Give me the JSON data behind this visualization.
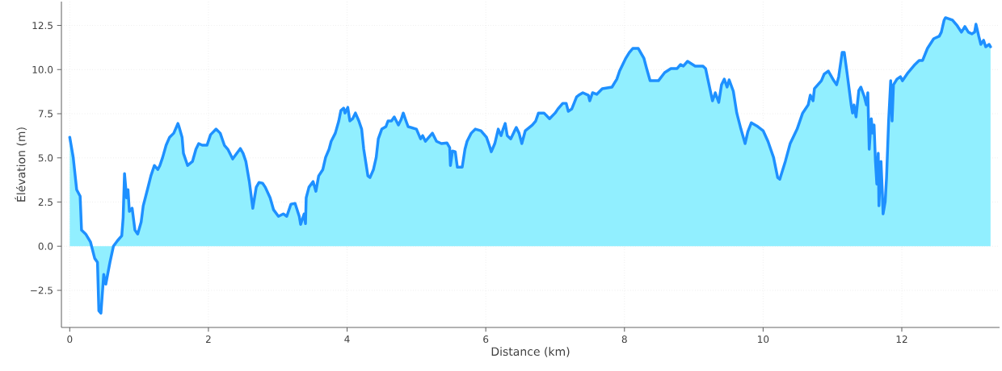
{
  "chart_data": {
    "type": "area",
    "xlabel": "Distance (km)",
    "ylabel": "Élévation (m)",
    "x": [
      0,
      0.05,
      0.1,
      0.15,
      0.17,
      0.23,
      0.3,
      0.36,
      0.4,
      0.42,
      0.45,
      0.49,
      0.52,
      0.58,
      0.63,
      0.69,
      0.75,
      0.77,
      0.79,
      0.82,
      0.84,
      0.86,
      0.9,
      0.94,
      0.98,
      1.03,
      1.06,
      1.12,
      1.17,
      1.22,
      1.27,
      1.3,
      1.34,
      1.39,
      1.44,
      1.5,
      1.56,
      1.58,
      1.62,
      1.64,
      1.7,
      1.77,
      1.82,
      1.86,
      1.91,
      1.98,
      2.03,
      2.11,
      2.17,
      2.23,
      2.28,
      2.35,
      2.41,
      2.46,
      2.5,
      2.54,
      2.59,
      2.64,
      2.69,
      2.73,
      2.78,
      2.82,
      2.89,
      2.94,
      3.01,
      3.08,
      3.13,
      3.19,
      3.25,
      3.31,
      3.33,
      3.38,
      3.4,
      3.41,
      3.45,
      3.51,
      3.55,
      3.59,
      3.65,
      3.69,
      3.74,
      3.77,
      3.83,
      3.88,
      3.91,
      3.95,
      3.97,
      4.01,
      4.04,
      4.08,
      4.12,
      4.17,
      4.21,
      4.24,
      4.3,
      4.33,
      4.38,
      4.42,
      4.45,
      4.5,
      4.56,
      4.59,
      4.64,
      4.68,
      4.74,
      4.78,
      4.81,
      4.85,
      4.88,
      5.0,
      5.06,
      5.09,
      5.13,
      5.23,
      5.29,
      5.36,
      5.44,
      5.48,
      5.49,
      5.52,
      5.56,
      5.59,
      5.66,
      5.7,
      5.73,
      5.79,
      5.85,
      5.93,
      6.01,
      6.05,
      6.08,
      6.13,
      6.18,
      6.22,
      6.25,
      6.28,
      6.31,
      6.36,
      6.41,
      6.44,
      6.48,
      6.52,
      6.57,
      6.67,
      6.72,
      6.76,
      6.84,
      6.92,
      7.0,
      7.04,
      7.11,
      7.16,
      7.19,
      7.24,
      7.31,
      7.34,
      7.4,
      7.48,
      7.5,
      7.54,
      7.6,
      7.68,
      7.82,
      7.89,
      7.93,
      8.02,
      8.07,
      8.12,
      8.2,
      8.28,
      8.32,
      8.37,
      8.49,
      8.58,
      8.67,
      8.76,
      8.81,
      8.85,
      8.91,
      9.02,
      9.13,
      9.17,
      9.2,
      9.27,
      9.31,
      9.36,
      9.4,
      9.44,
      9.48,
      9.51,
      9.57,
      9.62,
      9.68,
      9.74,
      9.78,
      9.83,
      9.91,
      10.0,
      10.07,
      10.15,
      10.21,
      10.24,
      10.32,
      10.39,
      10.49,
      10.57,
      10.65,
      10.68,
      10.72,
      10.74,
      10.84,
      10.88,
      10.94,
      11.02,
      11.06,
      11.09,
      11.14,
      11.17,
      11.21,
      11.27,
      11.29,
      11.31,
      11.34,
      11.38,
      11.41,
      11.46,
      11.49,
      11.51,
      11.53,
      11.56,
      11.58,
      11.6,
      11.62,
      11.64,
      11.66,
      11.67,
      11.7,
      11.72,
      11.73,
      11.76,
      11.78,
      11.81,
      11.84,
      11.86,
      11.88,
      11.93,
      11.98,
      12.01,
      12.09,
      12.19,
      12.25,
      12.3,
      12.37,
      12.46,
      12.54,
      12.57,
      12.61,
      12.63,
      12.73,
      12.8,
      12.86,
      12.91,
      12.96,
      13.01,
      13.05,
      13.07,
      13.11,
      13.14,
      13.18,
      13.21,
      13.26,
      13.28
    ],
    "series": [
      {
        "color": "#1e90ff",
        "values": [
          6.17,
          5.03,
          3.2,
          2.83,
          0.91,
          0.69,
          0.23,
          -0.69,
          -0.91,
          -3.66,
          -3.79,
          -1.6,
          -2.15,
          -0.91,
          0,
          0.32,
          0.59,
          1.6,
          4.11,
          2.74,
          3.2,
          1.97,
          2.15,
          0.91,
          0.69,
          1.37,
          2.29,
          3.2,
          3.98,
          4.57,
          4.34,
          4.57,
          5.03,
          5.72,
          6.17,
          6.4,
          6.95,
          6.72,
          6.17,
          5.26,
          4.57,
          4.8,
          5.49,
          5.81,
          5.72,
          5.72,
          6.31,
          6.63,
          6.4,
          5.72,
          5.49,
          4.94,
          5.26,
          5.53,
          5.26,
          4.8,
          3.66,
          2.15,
          3.34,
          3.61,
          3.57,
          3.34,
          2.74,
          2.06,
          1.69,
          1.83,
          1.69,
          2.38,
          2.42,
          1.69,
          1.23,
          1.83,
          1.28,
          2.74,
          3.34,
          3.66,
          3.11,
          3.98,
          4.34,
          5.03,
          5.49,
          5.94,
          6.4,
          7.09,
          7.68,
          7.82,
          7.54,
          7.86,
          7.09,
          7.22,
          7.54,
          7.09,
          6.63,
          5.49,
          3.98,
          3.89,
          4.34,
          5.03,
          6.08,
          6.63,
          6.77,
          7.09,
          7.09,
          7.32,
          6.86,
          7.18,
          7.54,
          7.09,
          6.77,
          6.63,
          6.08,
          6.26,
          5.94,
          6.4,
          5.94,
          5.81,
          5.85,
          5.58,
          4.57,
          5.39,
          5.35,
          4.48,
          4.48,
          5.49,
          5.94,
          6.4,
          6.63,
          6.54,
          6.17,
          5.72,
          5.35,
          5.81,
          6.63,
          6.26,
          6.63,
          6.95,
          6.26,
          6.08,
          6.49,
          6.72,
          6.4,
          5.81,
          6.54,
          6.86,
          7.09,
          7.54,
          7.54,
          7.22,
          7.54,
          7.77,
          8.09,
          8.09,
          7.64,
          7.77,
          8.46,
          8.55,
          8.69,
          8.55,
          8.23,
          8.69,
          8.6,
          8.92,
          9.01,
          9.46,
          9.92,
          10.65,
          10.97,
          11.2,
          11.2,
          10.65,
          10.06,
          9.37,
          9.37,
          9.83,
          10.06,
          10.06,
          10.29,
          10.2,
          10.47,
          10.2,
          10.2,
          10.06,
          9.51,
          8.23,
          8.69,
          8.14,
          9.14,
          9.46,
          9.01,
          9.42,
          8.78,
          7.54,
          6.63,
          5.81,
          6.49,
          6.99,
          6.81,
          6.54,
          5.94,
          5.03,
          3.89,
          3.79,
          4.8,
          5.81,
          6.63,
          7.54,
          8.0,
          8.55,
          8.23,
          8.92,
          9.37,
          9.74,
          9.92,
          9.37,
          9.14,
          9.6,
          10.97,
          10.97,
          9.83,
          8.0,
          7.54,
          8.0,
          7.32,
          8.82,
          9.01,
          8.46,
          8.0,
          8.69,
          5.49,
          7.22,
          6.4,
          6.86,
          4.8,
          3.52,
          5.26,
          2.29,
          4.8,
          2.97,
          1.83,
          2.51,
          3.89,
          7.09,
          9.37,
          7.09,
          9.14,
          9.46,
          9.6,
          9.37,
          9.83,
          10.29,
          10.52,
          10.52,
          11.2,
          11.75,
          11.89,
          12.12,
          12.8,
          12.94,
          12.8,
          12.48,
          12.12,
          12.44,
          12.12,
          12.02,
          12.12,
          12.57,
          11.89,
          11.43,
          11.66,
          11.29,
          11.43,
          11.29
        ]
      }
    ],
    "xlim": [
      -0.12,
      13.41
    ],
    "ylim": [
      -4.6,
      13.85
    ],
    "xticks": [
      0,
      2,
      4,
      6,
      8,
      10,
      12
    ],
    "yticks": [
      {
        "value": -2.5,
        "label": "−2.5"
      },
      {
        "value": 0,
        "label": "0.0"
      },
      2.5,
      {
        "value": 5,
        "label": "5.0"
      },
      7.5,
      {
        "value": 10,
        "label": "10.0"
      },
      12.5
    ],
    "grid": true,
    "line_style": "solid"
  }
}
